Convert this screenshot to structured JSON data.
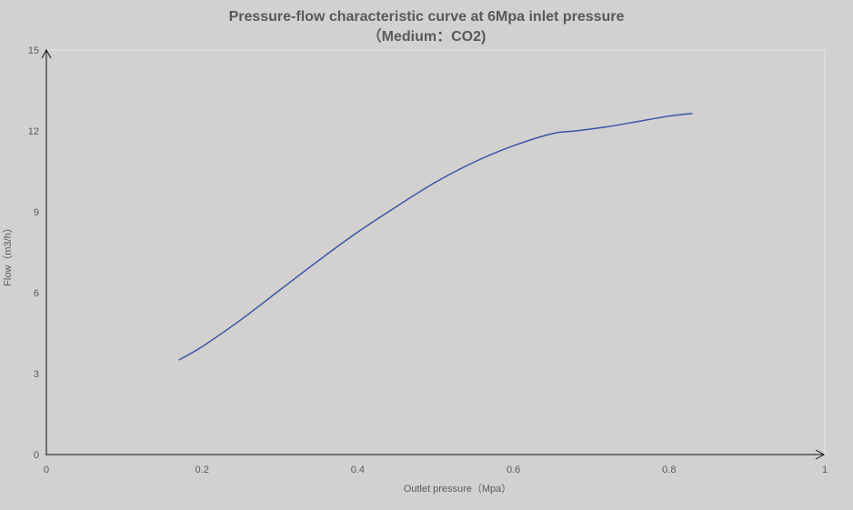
{
  "chart_data": {
    "type": "line",
    "title_line1": "Pressure-flow characteristic curve at 6Mpa inlet pressure",
    "title_line2": "（Medium：CO2)",
    "xlabel": "Outlet pressure（Mpa）",
    "ylabel": "Flow（m3/h）",
    "xlim": [
      0,
      1
    ],
    "ylim": [
      0,
      15
    ],
    "x_ticks": [
      "0",
      "0.2",
      "0.4",
      "0.6",
      "0.8",
      "1"
    ],
    "y_ticks": [
      "0",
      "3",
      "6",
      "9",
      "12",
      "15"
    ],
    "series": [
      {
        "color": "#3a56a6",
        "x": [
          0.17,
          0.2,
          0.25,
          0.3,
          0.35,
          0.4,
          0.45,
          0.5,
          0.55,
          0.6,
          0.65,
          0.68,
          0.72,
          0.76,
          0.8,
          0.83
        ],
        "y": [
          3.5,
          4.0,
          5.0,
          6.1,
          7.2,
          8.25,
          9.2,
          10.1,
          10.85,
          11.45,
          11.9,
          12.0,
          12.15,
          12.35,
          12.55,
          12.65
        ]
      }
    ],
    "grid": false,
    "legend": "none"
  }
}
